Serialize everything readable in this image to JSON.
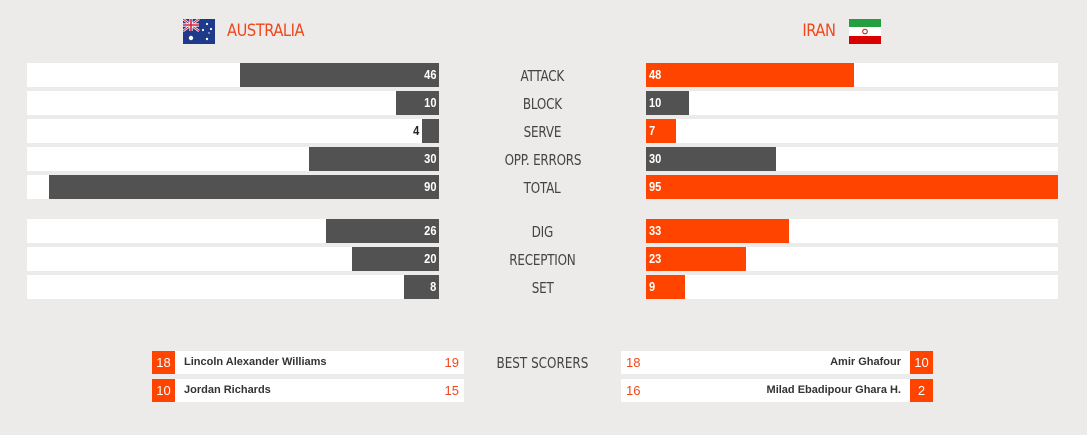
{
  "teams": {
    "left": {
      "name": "AUSTRALIA",
      "flag": "australia-flag-icon"
    },
    "right": {
      "name": "IRAN",
      "flag": "iran-flag-icon"
    }
  },
  "colors": {
    "dark": "#525252",
    "accent": "#ff4400",
    "track": "#ffffff",
    "background": "#edeaea"
  },
  "chart_data": {
    "type": "bar",
    "orientation": "horizontal-butterfly",
    "xlim": [
      0,
      95
    ],
    "series": [
      {
        "name": "AUSTRALIA"
      },
      {
        "name": "IRAN"
      }
    ],
    "groups": [
      {
        "categories": [
          {
            "label": "ATTACK",
            "left": 46,
            "right": 48
          },
          {
            "label": "BLOCK",
            "left": 10,
            "right": 10
          },
          {
            "label": "SERVE",
            "left": 4,
            "right": 7
          },
          {
            "label": "OPP. ERRORS",
            "left": 30,
            "right": 30
          },
          {
            "label": "TOTAL",
            "left": 90,
            "right": 95
          }
        ]
      },
      {
        "categories": [
          {
            "label": "DIG",
            "left": 26,
            "right": 33
          },
          {
            "label": "RECEPTION",
            "left": 20,
            "right": 23
          },
          {
            "label": "SET",
            "left": 8,
            "right": 9
          }
        ]
      }
    ]
  },
  "best_scorers": {
    "title": "BEST SCORERS",
    "left": [
      {
        "number": "18",
        "name": "Lincoln Alexander Williams",
        "points": "19"
      },
      {
        "number": "10",
        "name": "Jordan Richards",
        "points": "15"
      }
    ],
    "right": [
      {
        "number": "10",
        "name": "Amir Ghafour",
        "points": "18"
      },
      {
        "number": "2",
        "name": "Milad Ebadipour Ghara H.",
        "points": "16"
      }
    ]
  }
}
